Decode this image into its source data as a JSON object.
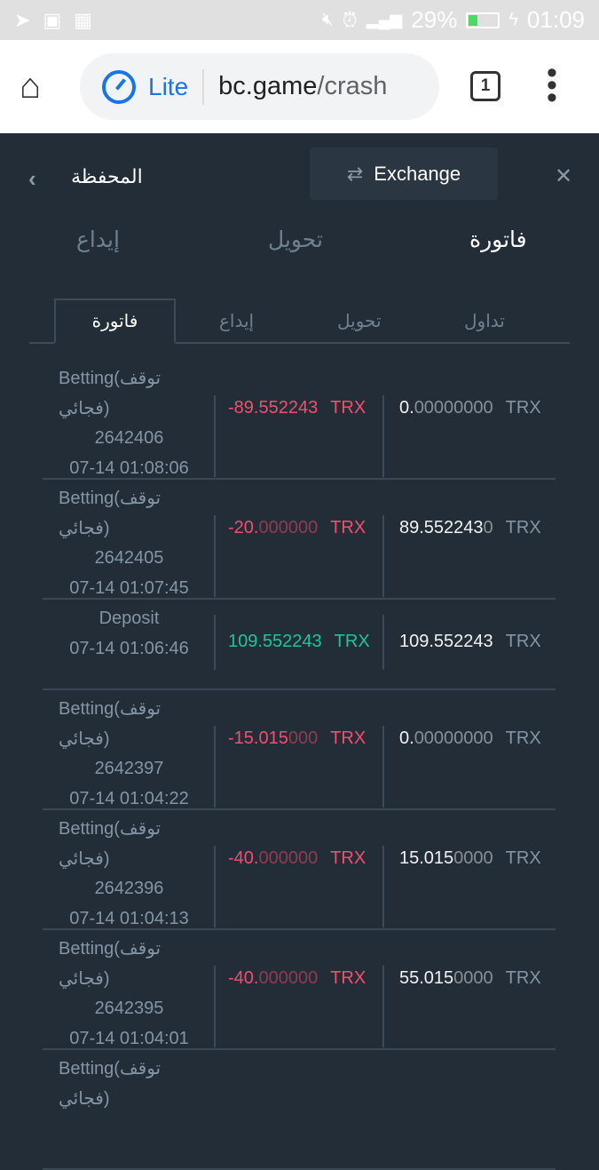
{
  "status_bar": {
    "battery": "29%",
    "time": "01:09",
    "battery_level": 0.29
  },
  "browser": {
    "mode": "Lite",
    "host": "bc.game",
    "path": "/crash",
    "tab_count": "1"
  },
  "header": {
    "title": "المحفظة",
    "exchange_label": "Exchange"
  },
  "main_tabs": [
    {
      "label": "فاتورة",
      "active": true
    },
    {
      "label": "تحويل"
    },
    {
      "label": "إيداع"
    }
  ],
  "sub_tabs": [
    {
      "label": "تداول"
    },
    {
      "label": "تحويل"
    },
    {
      "label": "إيداع"
    },
    {
      "label": "فاتورة",
      "active": true
    }
  ],
  "colors": {
    "background": "#222d38",
    "negative": "#f0506e",
    "positive": "#19c79a"
  },
  "transactions": [
    {
      "type": "Betting(توقف فجائي)",
      "id": "2642406",
      "time": "07-14 01:08:06",
      "amount": "-89.552243",
      "amount_dim": "",
      "currency": "TRX",
      "balance": "0.",
      "balance_dim": "00000000",
      "balance_currency": "TRX"
    },
    {
      "type": "Betting(توقف فجائي)",
      "id": "2642405",
      "time": "07-14 01:07:45",
      "amount": "-20.",
      "amount_dim": "000000",
      "currency": "TRX",
      "balance": "89.552243",
      "balance_dim": "0",
      "balance_currency": "TRX"
    },
    {
      "type": "Deposit",
      "time": "07-14 01:06:46",
      "amount": "109.552243",
      "amount_dim": "",
      "currency": "TRX",
      "balance": "109.552243",
      "balance_dim": "",
      "balance_currency": "TRX"
    },
    {
      "type": "Betting(توقف فجائي)",
      "id": "2642397",
      "time": "07-14 01:04:22",
      "amount": "-15.015",
      "amount_dim": "000",
      "currency": "TRX",
      "balance": "0.",
      "balance_dim": "00000000",
      "balance_currency": "TRX"
    },
    {
      "type": "Betting(توقف فجائي)",
      "id": "2642396",
      "time": "07-14 01:04:13",
      "amount": "-40.",
      "amount_dim": "000000",
      "currency": "TRX",
      "balance": "15.015",
      "balance_dim": "0000",
      "balance_currency": "TRX"
    },
    {
      "type": "Betting(توقف فجائي)",
      "id": "2642395",
      "time": "07-14 01:04:01",
      "amount": "-40.",
      "amount_dim": "000000",
      "currency": "TRX",
      "balance": "55.015",
      "balance_dim": "0000",
      "balance_currency": "TRX"
    },
    {
      "type": "Betting(توقف فجائي)"
    }
  ]
}
